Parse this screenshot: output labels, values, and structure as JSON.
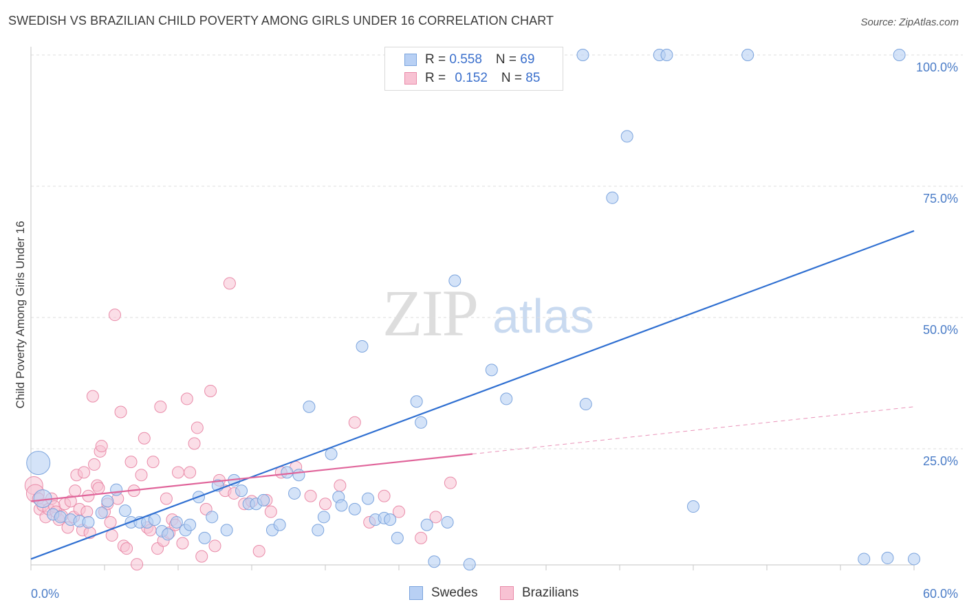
{
  "title": "SWEDISH VS BRAZILIAN CHILD POVERTY AMONG GIRLS UNDER 16 CORRELATION CHART",
  "source": "Source: ZipAtlas.com",
  "watermark": {
    "zip": "ZIP",
    "atlas": "atlas"
  },
  "legend_top": {
    "rows": [
      {
        "r_label": "R = ",
        "r_value": "0.558",
        "n_label": "N = ",
        "n_value": "69"
      },
      {
        "r_label": "R = ",
        "r_value": "0.152",
        "n_label": "N = ",
        "n_value": "85"
      }
    ]
  },
  "legend_bottom": {
    "swedes": "Swedes",
    "brazilians": "Brazilians"
  },
  "colors": {
    "swedes_fill": "#b8d0f4",
    "swedes_stroke": "#7aa3dd",
    "swedes_line": "#2f6fd1",
    "brazilians_fill": "#f8c2d3",
    "brazilians_stroke": "#e98aa8",
    "brazilians_line": "#e0649a",
    "grid": "#dedede",
    "tick": "#4a7cc7"
  },
  "chart_data": {
    "type": "scatter",
    "title": "SWEDISH VS BRAZILIAN CHILD POVERTY AMONG GIRLS UNDER 16 CORRELATION CHART",
    "xlabel": "",
    "ylabel": "Child Poverty Among Girls Under 16",
    "xlim": [
      0,
      60
    ],
    "ylim": [
      0,
      105
    ],
    "x_tick_labels": [
      "0.0%",
      "60.0%"
    ],
    "y_ticks": [
      {
        "value": 25,
        "label": "25.0%"
      },
      {
        "value": 50,
        "label": "50.0%"
      },
      {
        "value": 75,
        "label": "75.0%"
      },
      {
        "value": 100,
        "label": "100.0%"
      }
    ],
    "grid": true,
    "legend_position": "top-center",
    "series": [
      {
        "name": "Swedes",
        "R": 0.558,
        "N": 69,
        "trend": {
          "x": [
            0,
            60
          ],
          "y": [
            4.0,
            66.5
          ]
        },
        "points": [
          [
            0.5,
            22.3,
            3
          ],
          [
            0.8,
            15.5,
            2
          ],
          [
            1.5,
            12.5,
            1
          ],
          [
            2.0,
            12.0,
            1
          ],
          [
            2.7,
            11.5,
            1
          ],
          [
            3.3,
            11.2,
            1
          ],
          [
            3.9,
            11.0,
            1
          ],
          [
            4.8,
            12.8,
            1
          ],
          [
            5.2,
            15.0,
            1
          ],
          [
            5.8,
            17.2,
            1
          ],
          [
            6.4,
            13.2,
            1
          ],
          [
            6.8,
            11.0,
            1
          ],
          [
            7.4,
            11.0,
            1
          ],
          [
            7.9,
            11.0,
            1
          ],
          [
            8.4,
            11.5,
            1
          ],
          [
            8.9,
            9.3,
            1
          ],
          [
            9.3,
            8.7,
            1
          ],
          [
            9.9,
            11.0,
            1
          ],
          [
            10.5,
            9.5,
            1
          ],
          [
            10.8,
            10.5,
            1
          ],
          [
            11.4,
            15.8,
            1
          ],
          [
            11.8,
            8.0,
            1
          ],
          [
            12.3,
            12.0,
            1
          ],
          [
            12.7,
            18.0,
            1
          ],
          [
            13.3,
            9.5,
            1
          ],
          [
            13.8,
            19.0,
            1
          ],
          [
            14.3,
            17.0,
            1
          ],
          [
            14.8,
            14.5,
            1
          ],
          [
            15.3,
            14.5,
            1
          ],
          [
            15.8,
            15.2,
            1
          ],
          [
            16.4,
            9.5,
            1
          ],
          [
            16.9,
            10.5,
            1
          ],
          [
            17.4,
            20.5,
            1
          ],
          [
            17.9,
            16.5,
            1
          ],
          [
            18.2,
            20.0,
            1
          ],
          [
            18.9,
            33.0,
            1
          ],
          [
            19.5,
            9.5,
            1
          ],
          [
            19.9,
            12.0,
            1
          ],
          [
            20.4,
            24.0,
            1
          ],
          [
            20.9,
            15.8,
            1
          ],
          [
            21.1,
            14.2,
            1
          ],
          [
            22.0,
            13.5,
            1
          ],
          [
            22.5,
            44.5,
            1
          ],
          [
            22.9,
            15.5,
            1
          ],
          [
            23.4,
            11.5,
            1
          ],
          [
            24.0,
            11.8,
            1
          ],
          [
            24.4,
            11.5,
            1
          ],
          [
            24.9,
            8.0,
            1
          ],
          [
            26.2,
            34.0,
            1
          ],
          [
            26.5,
            30.0,
            1
          ],
          [
            26.9,
            10.5,
            1
          ],
          [
            27.4,
            3.5,
            1
          ],
          [
            28.3,
            11.0,
            1
          ],
          [
            28.8,
            57.0,
            1
          ],
          [
            29.8,
            3.0,
            1
          ],
          [
            31.3,
            40.0,
            1
          ],
          [
            32.3,
            34.5,
            1
          ],
          [
            37.5,
            100.0,
            1
          ],
          [
            37.7,
            33.5,
            1
          ],
          [
            39.5,
            72.8,
            1
          ],
          [
            40.5,
            84.5,
            1
          ],
          [
            42.7,
            100.0,
            1
          ],
          [
            43.2,
            100.0,
            1
          ],
          [
            45.0,
            14.0,
            1
          ],
          [
            48.7,
            100.0,
            1
          ],
          [
            56.6,
            4.0,
            1
          ],
          [
            58.2,
            4.2,
            1
          ],
          [
            59.0,
            100.0,
            1
          ],
          [
            60.0,
            4.0,
            1
          ]
        ]
      },
      {
        "name": "Brazilians",
        "R": 0.152,
        "N": 85,
        "trend": {
          "x": [
            0,
            30
          ],
          "y": [
            15.0,
            24.0
          ]
        },
        "trend_dashed": {
          "x": [
            30,
            60
          ],
          "y": [
            24.0,
            33.0
          ]
        },
        "points": [
          [
            0.2,
            18.0,
            2
          ],
          [
            0.3,
            16.5,
            2
          ],
          [
            0.5,
            15.5,
            1
          ],
          [
            0.6,
            13.5,
            1
          ],
          [
            0.8,
            14.2,
            1
          ],
          [
            1.0,
            12.0,
            1
          ],
          [
            1.2,
            13.5,
            1
          ],
          [
            1.4,
            15.5,
            1
          ],
          [
            1.6,
            14.0,
            1
          ],
          [
            1.7,
            13.0,
            1
          ],
          [
            1.9,
            11.5,
            1
          ],
          [
            2.1,
            12.2,
            1
          ],
          [
            2.3,
            14.5,
            1
          ],
          [
            2.5,
            10.0,
            1
          ],
          [
            2.7,
            15.0,
            1
          ],
          [
            2.9,
            12.0,
            1
          ],
          [
            3.0,
            17.0,
            1
          ],
          [
            3.1,
            20.0,
            1
          ],
          [
            3.3,
            13.5,
            1
          ],
          [
            3.5,
            9.5,
            1
          ],
          [
            3.6,
            20.5,
            1
          ],
          [
            3.8,
            13.0,
            1
          ],
          [
            3.9,
            16.0,
            1
          ],
          [
            4.0,
            9.0,
            1
          ],
          [
            4.2,
            35.0,
            1
          ],
          [
            4.3,
            22.0,
            1
          ],
          [
            4.5,
            18.0,
            1
          ],
          [
            4.6,
            17.5,
            1
          ],
          [
            4.7,
            24.5,
            1
          ],
          [
            4.8,
            25.5,
            1
          ],
          [
            5.0,
            13.0,
            1
          ],
          [
            5.2,
            14.5,
            1
          ],
          [
            5.4,
            11.0,
            1
          ],
          [
            5.5,
            8.5,
            1
          ],
          [
            5.7,
            50.5,
            1
          ],
          [
            5.9,
            15.5,
            1
          ],
          [
            6.1,
            32.0,
            1
          ],
          [
            6.3,
            6.5,
            1
          ],
          [
            6.5,
            6.0,
            1
          ],
          [
            6.8,
            22.5,
            1
          ],
          [
            7.0,
            17.0,
            1
          ],
          [
            7.2,
            3.0,
            1
          ],
          [
            7.5,
            20.0,
            1
          ],
          [
            7.7,
            27.0,
            1
          ],
          [
            7.9,
            10.0,
            1
          ],
          [
            8.1,
            9.5,
            1
          ],
          [
            8.3,
            22.5,
            1
          ],
          [
            8.6,
            6.0,
            1
          ],
          [
            8.8,
            33.0,
            1
          ],
          [
            9.0,
            7.5,
            1
          ],
          [
            9.2,
            15.5,
            1
          ],
          [
            9.4,
            9.0,
            1
          ],
          [
            9.6,
            11.5,
            1
          ],
          [
            9.8,
            10.5,
            1
          ],
          [
            10.0,
            20.5,
            1
          ],
          [
            10.3,
            7.0,
            1
          ],
          [
            10.6,
            34.5,
            1
          ],
          [
            10.8,
            20.5,
            1
          ],
          [
            11.1,
            26.0,
            1
          ],
          [
            11.3,
            29.0,
            1
          ],
          [
            11.6,
            4.5,
            1
          ],
          [
            11.9,
            13.5,
            1
          ],
          [
            12.2,
            36.0,
            1
          ],
          [
            12.5,
            6.5,
            1
          ],
          [
            12.8,
            19.0,
            1
          ],
          [
            13.2,
            17.0,
            1
          ],
          [
            13.5,
            56.5,
            1
          ],
          [
            13.8,
            16.5,
            1
          ],
          [
            14.5,
            14.5,
            1
          ],
          [
            15.0,
            15.0,
            1
          ],
          [
            15.5,
            5.5,
            1
          ],
          [
            16.0,
            15.2,
            1
          ],
          [
            16.3,
            13.0,
            1
          ],
          [
            17.0,
            20.5,
            1
          ],
          [
            18.0,
            21.5,
            1
          ],
          [
            19.0,
            16.0,
            1
          ],
          [
            20.0,
            14.5,
            1
          ],
          [
            21.0,
            18.0,
            1
          ],
          [
            22.0,
            30.0,
            1
          ],
          [
            23.0,
            11.0,
            1
          ],
          [
            24.0,
            16.0,
            1
          ],
          [
            25.0,
            13.0,
            1
          ],
          [
            26.5,
            8.0,
            1
          ],
          [
            27.5,
            12.0,
            1
          ],
          [
            28.5,
            18.5,
            1
          ]
        ]
      }
    ]
  }
}
